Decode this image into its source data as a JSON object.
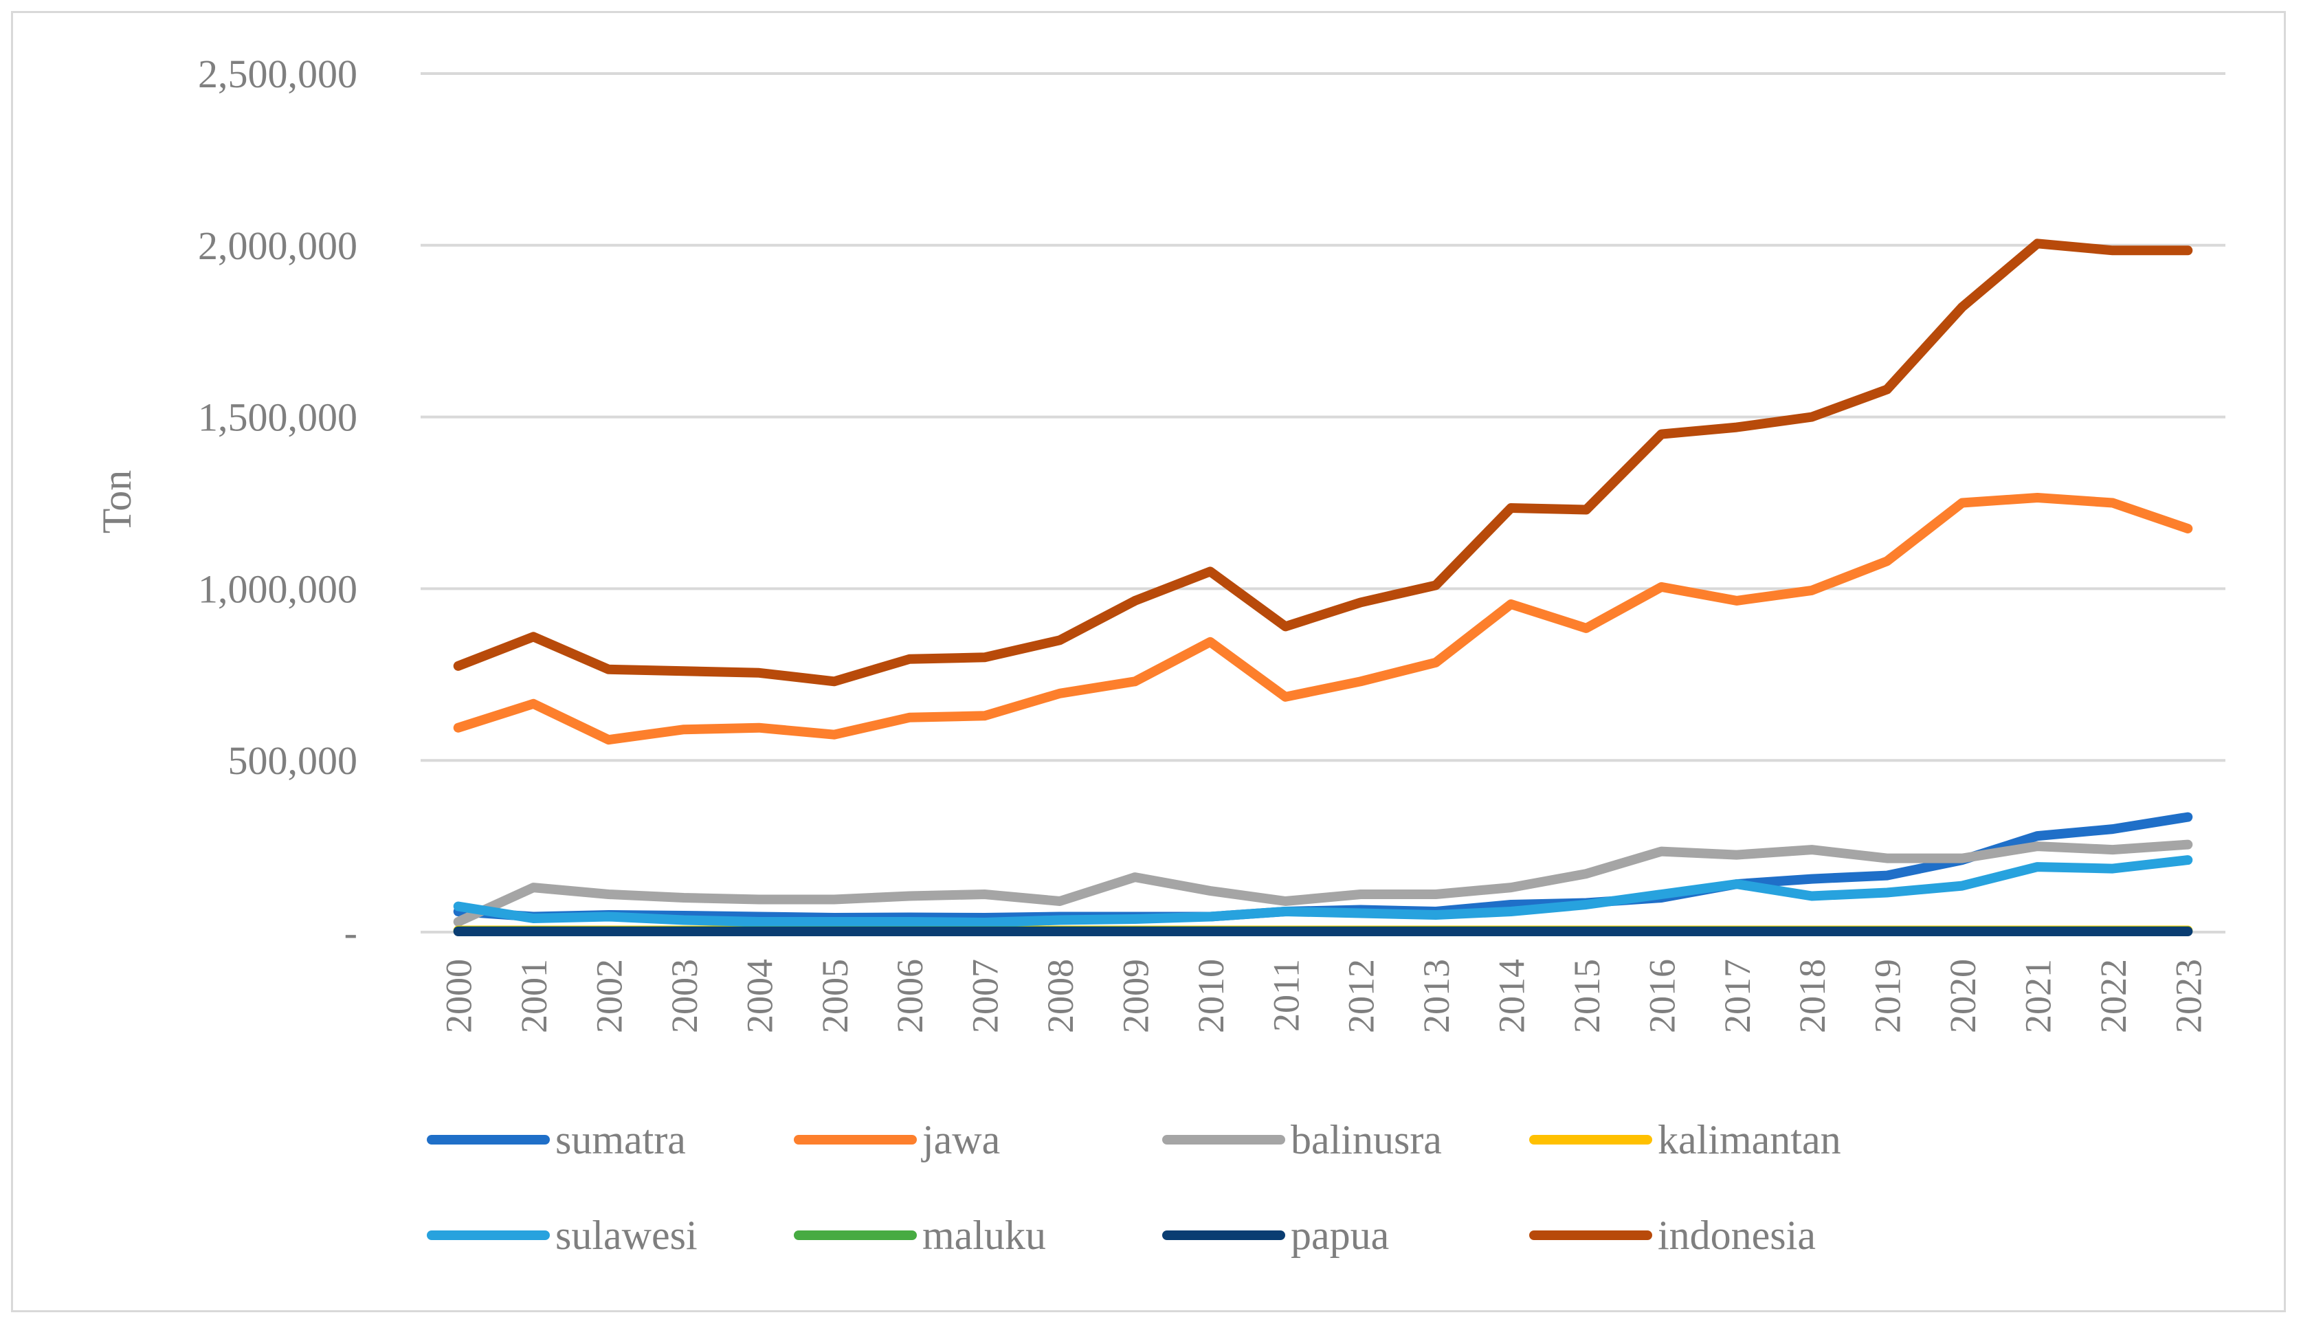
{
  "chart_data": {
    "type": "line",
    "title": "",
    "xlabel": "",
    "ylabel": "Ton",
    "ylim": [
      0,
      2500000
    ],
    "yticks": [
      0,
      500000,
      1000000,
      1500000,
      2000000,
      2500000
    ],
    "ytick_labels": [
      "-",
      "500,000",
      "1,000,000",
      "1,500,000",
      "2,000,000",
      "2,500,000"
    ],
    "grid": true,
    "legend_position": "bottom",
    "categories": [
      "2000",
      "2001",
      "2002",
      "2003",
      "2004",
      "2005",
      "2006",
      "2007",
      "2008",
      "2009",
      "2010",
      "2011",
      "2012",
      "2013",
      "2014",
      "2015",
      "2016",
      "2017",
      "2018",
      "2019",
      "2020",
      "2021",
      "2022",
      "2023"
    ],
    "series": [
      {
        "name": "sumatra",
        "color": "#1f6fc8",
        "values": [
          60000,
          45000,
          50000,
          48000,
          45000,
          42000,
          43000,
          42000,
          45000,
          45000,
          45000,
          60000,
          65000,
          60000,
          80000,
          85000,
          100000,
          140000,
          155000,
          165000,
          210000,
          280000,
          300000,
          335000
        ]
      },
      {
        "name": "jawa",
        "color": "#fd7f2c",
        "values": [
          595000,
          665000,
          560000,
          590000,
          595000,
          575000,
          625000,
          630000,
          695000,
          730000,
          845000,
          685000,
          730000,
          785000,
          955000,
          885000,
          1005000,
          965000,
          995000,
          1080000,
          1250000,
          1265000,
          1250000,
          1175000
        ]
      },
      {
        "name": "balinusra",
        "color": "#a5a5a5",
        "values": [
          30000,
          130000,
          110000,
          100000,
          95000,
          95000,
          105000,
          110000,
          90000,
          160000,
          120000,
          90000,
          110000,
          110000,
          130000,
          170000,
          235000,
          225000,
          240000,
          215000,
          215000,
          250000,
          240000,
          255000
        ]
      },
      {
        "name": "kalimantan",
        "color": "#ffc000",
        "values": [
          5000,
          5000,
          5000,
          5000,
          5000,
          5000,
          5000,
          5000,
          5000,
          5000,
          5000,
          5000,
          5000,
          5000,
          5000,
          5000,
          5000,
          5000,
          5000,
          5000,
          5000,
          5000,
          5000,
          5000
        ]
      },
      {
        "name": "sulawesi",
        "color": "#27a2de",
        "values": [
          75000,
          40000,
          45000,
          35000,
          30000,
          30000,
          30000,
          28000,
          35000,
          38000,
          45000,
          60000,
          55000,
          50000,
          60000,
          80000,
          110000,
          140000,
          105000,
          115000,
          135000,
          190000,
          185000,
          210000
        ]
      },
      {
        "name": "maluku",
        "color": "#47ab42",
        "values": [
          3000,
          3000,
          3000,
          3000,
          3000,
          3000,
          3000,
          3000,
          3000,
          3000,
          3000,
          3000,
          3000,
          3000,
          3000,
          3000,
          3000,
          3000,
          3000,
          3000,
          3000,
          3000,
          3000,
          3000
        ]
      },
      {
        "name": "papua",
        "color": "#0a3d72",
        "values": [
          2000,
          2000,
          2000,
          2000,
          2000,
          2000,
          2000,
          2000,
          2000,
          2000,
          2000,
          2000,
          2000,
          2000,
          2000,
          2000,
          2000,
          2000,
          2000,
          2000,
          2000,
          2000,
          2000,
          2000
        ]
      },
      {
        "name": "indonesia",
        "color": "#b84a0a",
        "values": [
          775000,
          860000,
          765000,
          760000,
          755000,
          730000,
          795000,
          800000,
          850000,
          965000,
          1050000,
          890000,
          960000,
          1010000,
          1235000,
          1230000,
          1450000,
          1470000,
          1500000,
          1580000,
          1820000,
          2005000,
          1985000,
          1985000
        ]
      }
    ]
  }
}
